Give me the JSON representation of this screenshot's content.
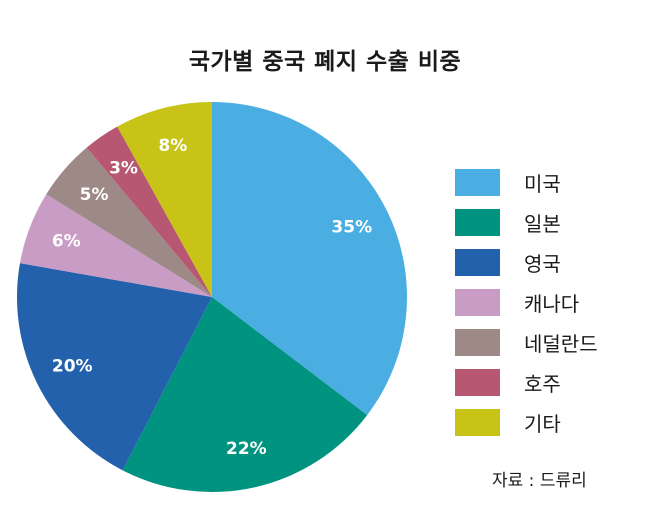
{
  "chart_data": {
    "type": "pie",
    "title": "국가별 중국 폐지 수출 비중",
    "categories": [
      "미국",
      "일본",
      "영국",
      "캐나다",
      "네덜란드",
      "호주",
      "기타"
    ],
    "values": [
      35,
      22,
      20,
      6,
      5,
      3,
      8
    ],
    "data_labels": [
      "35%",
      "22%",
      "20%",
      "6%",
      "5%",
      "3%",
      "8%"
    ],
    "colors": [
      "#4aaee2",
      "#009380",
      "#2361ad",
      "#c99cc6",
      "#9d8985",
      "#b85771",
      "#c8c317"
    ],
    "legend": "right",
    "source": "자료 : 드류리"
  }
}
